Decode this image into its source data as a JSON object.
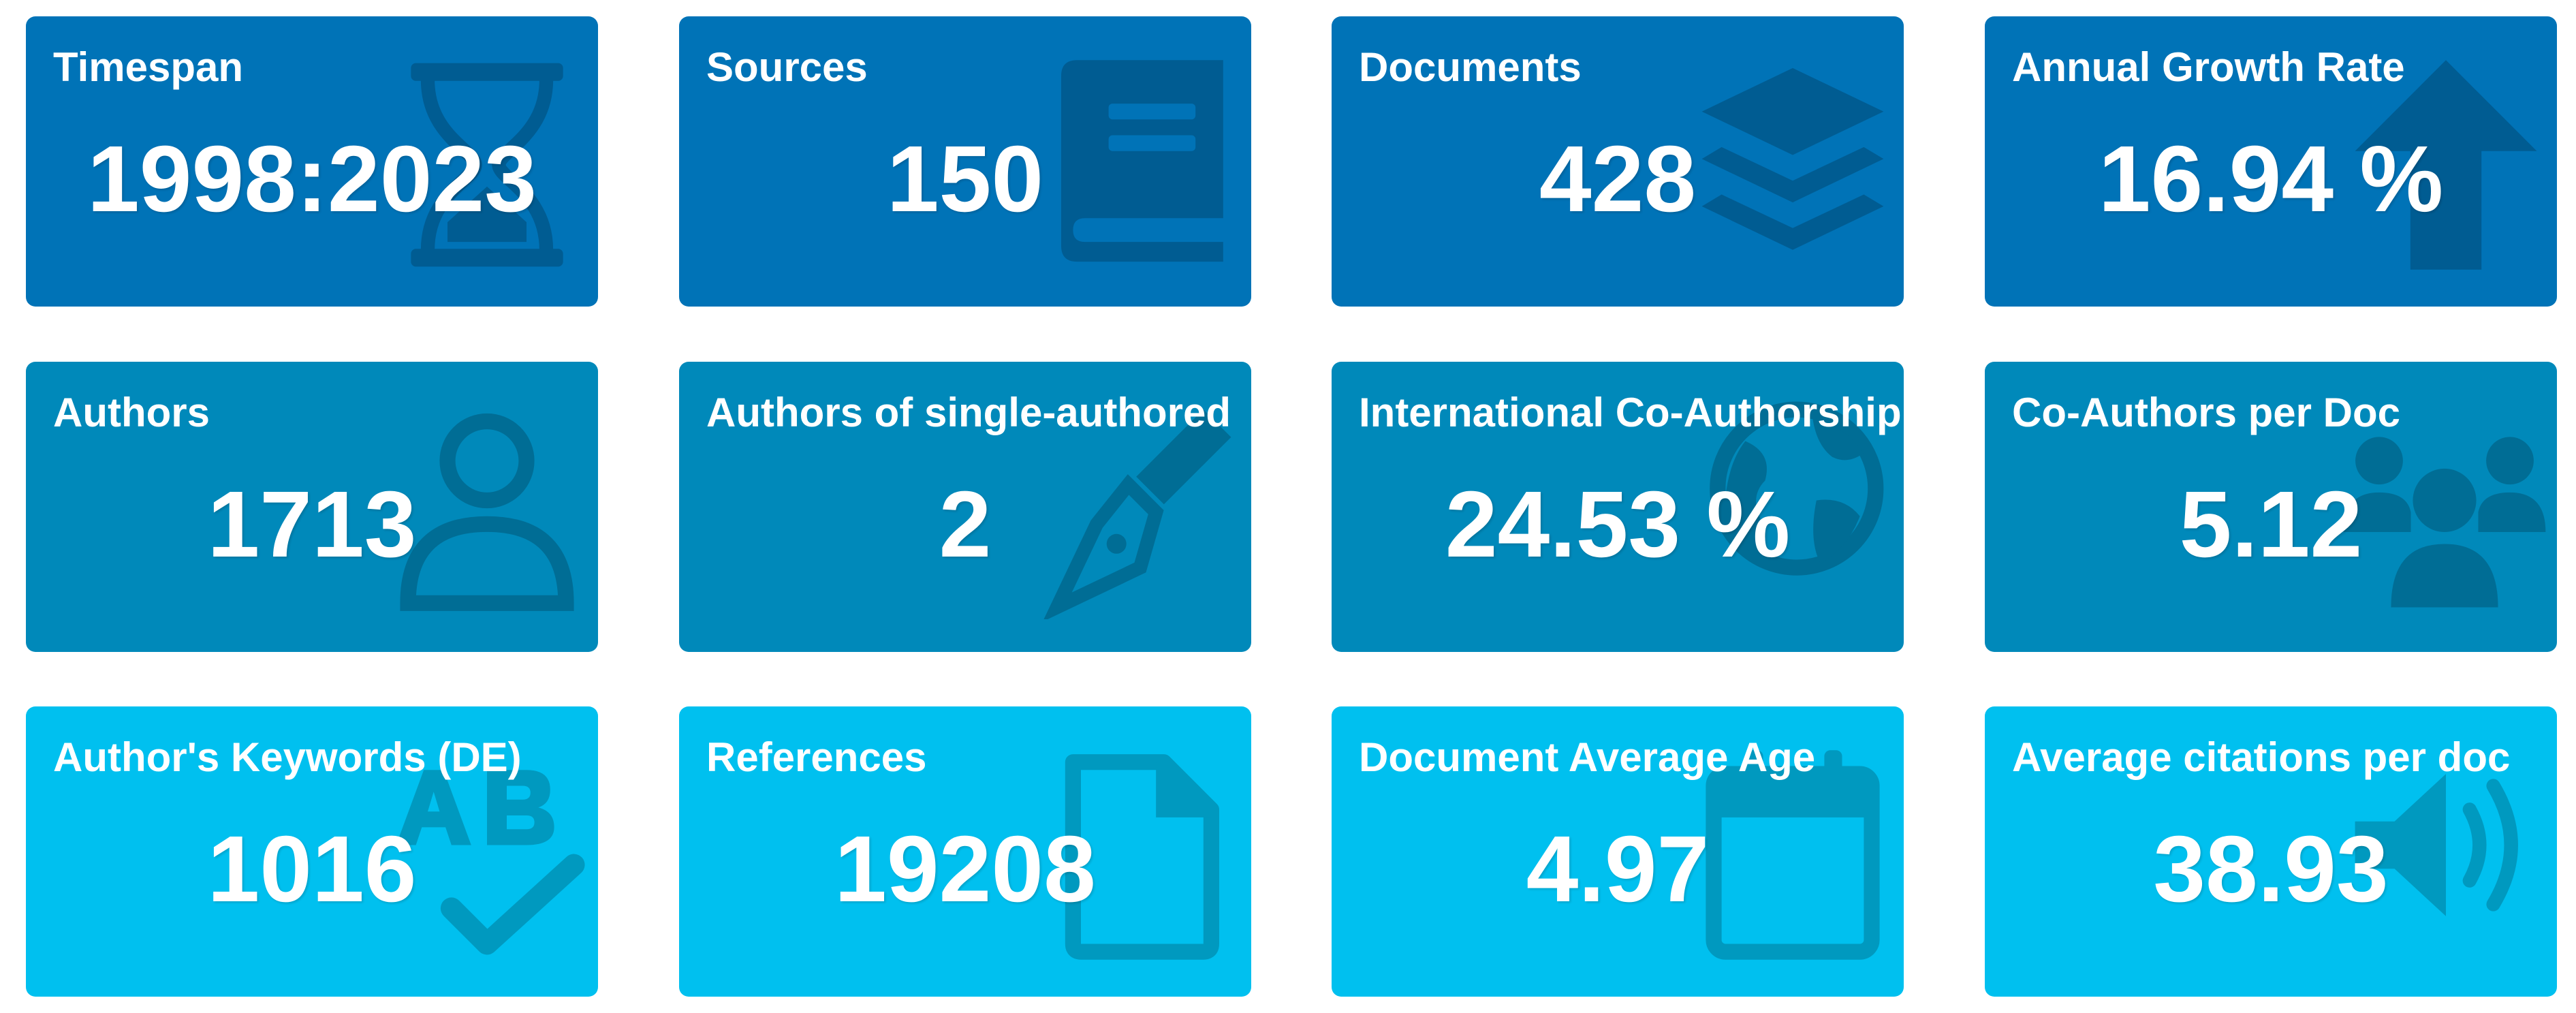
{
  "colors": {
    "row1_box": "#0073b7",
    "row2_box": "#0089ba",
    "row3_box": "#00c0ef",
    "text": "#ffffff"
  },
  "cards": [
    {
      "label": "Timespan",
      "value": "1998:2023",
      "icon": "hourglass-icon"
    },
    {
      "label": "Sources",
      "value": "150",
      "icon": "book-icon"
    },
    {
      "label": "Documents",
      "value": "428",
      "icon": "layers-icon"
    },
    {
      "label": "Annual Growth Rate",
      "value": "16.94 %",
      "icon": "arrow-up-icon"
    },
    {
      "label": "Authors",
      "value": "1713",
      "icon": "user-icon"
    },
    {
      "label": "Authors of single-authored",
      "value": "2",
      "icon": "pen-nib-icon"
    },
    {
      "label": "International Co-Authorship",
      "value": "24.53 %",
      "icon": "globe-icon"
    },
    {
      "label": "Co-Authors per Doc",
      "value": "5.12",
      "icon": "users-icon"
    },
    {
      "label": "Author's Keywords (DE)",
      "value": "1016",
      "icon": "spell-check-icon"
    },
    {
      "label": "References",
      "value": "19208",
      "icon": "file-icon"
    },
    {
      "label": "Document Average Age",
      "value": "4.97",
      "icon": "calendar-icon"
    },
    {
      "label": "Average citations per doc",
      "value": "38.93",
      "icon": "volume-icon"
    }
  ]
}
